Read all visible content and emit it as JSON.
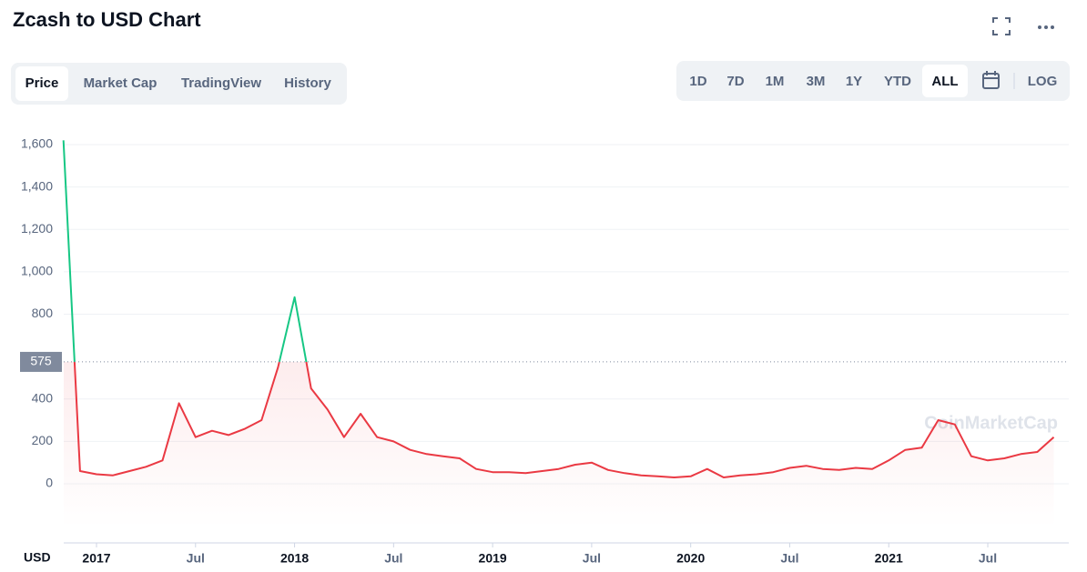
{
  "header": {
    "title": "Zcash to USD Chart"
  },
  "tabs": [
    "Price",
    "Market Cap",
    "TradingView",
    "History"
  ],
  "ranges": [
    "1D",
    "7D",
    "1M",
    "3M",
    "1Y",
    "YTD",
    "ALL"
  ],
  "log_button": "LOG",
  "chart_data": {
    "type": "line",
    "currency": "USD",
    "watermark": "CoinMarketCap",
    "x": [
      "2016-11",
      "2016-12",
      "2017-01",
      "2017-02",
      "2017-03",
      "2017-04",
      "2017-05",
      "2017-06",
      "2017-07",
      "2017-08",
      "2017-09",
      "2017-10",
      "2017-11",
      "2017-12",
      "2018-01",
      "2018-02",
      "2018-03",
      "2018-04",
      "2018-05",
      "2018-06",
      "2018-07",
      "2018-08",
      "2018-09",
      "2018-10",
      "2018-11",
      "2018-12",
      "2019-01",
      "2019-02",
      "2019-03",
      "2019-04",
      "2019-05",
      "2019-06",
      "2019-07",
      "2019-08",
      "2019-09",
      "2019-10",
      "2019-11",
      "2019-12",
      "2020-01",
      "2020-02",
      "2020-03",
      "2020-04",
      "2020-05",
      "2020-06",
      "2020-07",
      "2020-08",
      "2020-09",
      "2020-10",
      "2020-11",
      "2020-12",
      "2021-01",
      "2021-02",
      "2021-03",
      "2021-04",
      "2021-05",
      "2021-06",
      "2021-07",
      "2021-08",
      "2021-09",
      "2021-10",
      "2021-11"
    ],
    "series": [
      {
        "name": "Price",
        "color": "#ea3943",
        "color_above": "#16c784",
        "values": [
          1620,
          60,
          45,
          40,
          60,
          80,
          110,
          380,
          220,
          250,
          230,
          260,
          300,
          550,
          880,
          450,
          350,
          220,
          330,
          220,
          200,
          160,
          140,
          130,
          120,
          70,
          55,
          55,
          50,
          60,
          70,
          90,
          100,
          65,
          50,
          40,
          35,
          30,
          35,
          70,
          30,
          40,
          45,
          55,
          75,
          85,
          70,
          65,
          75,
          70,
          110,
          160,
          170,
          300,
          280,
          130,
          110,
          120,
          140,
          150,
          220
        ]
      }
    ],
    "current_price": 575,
    "ylim": [
      -206,
      1660
    ],
    "yticks": [
      0,
      200,
      400,
      800,
      {
        "value": 1000,
        "label": "1,000"
      },
      {
        "value": 1200,
        "label": "1,200"
      },
      {
        "value": 1400,
        "label": "1,400"
      },
      {
        "value": 1600,
        "label": "1,600"
      }
    ],
    "xticks": [
      {
        "value": "2017-01",
        "label": "2017"
      },
      {
        "value": "2017-07",
        "label": "Jul"
      },
      {
        "value": "2018-01",
        "label": "2018"
      },
      {
        "value": "2018-07",
        "label": "Jul"
      },
      {
        "value": "2019-01",
        "label": "2019"
      },
      {
        "value": "2019-07",
        "label": "Jul"
      },
      {
        "value": "2020-01",
        "label": "2020"
      },
      {
        "value": "2020-07",
        "label": "Jul"
      },
      {
        "value": "2021-01",
        "label": "2021"
      },
      {
        "value": "2021-07",
        "label": "Jul"
      }
    ],
    "grid": true
  }
}
